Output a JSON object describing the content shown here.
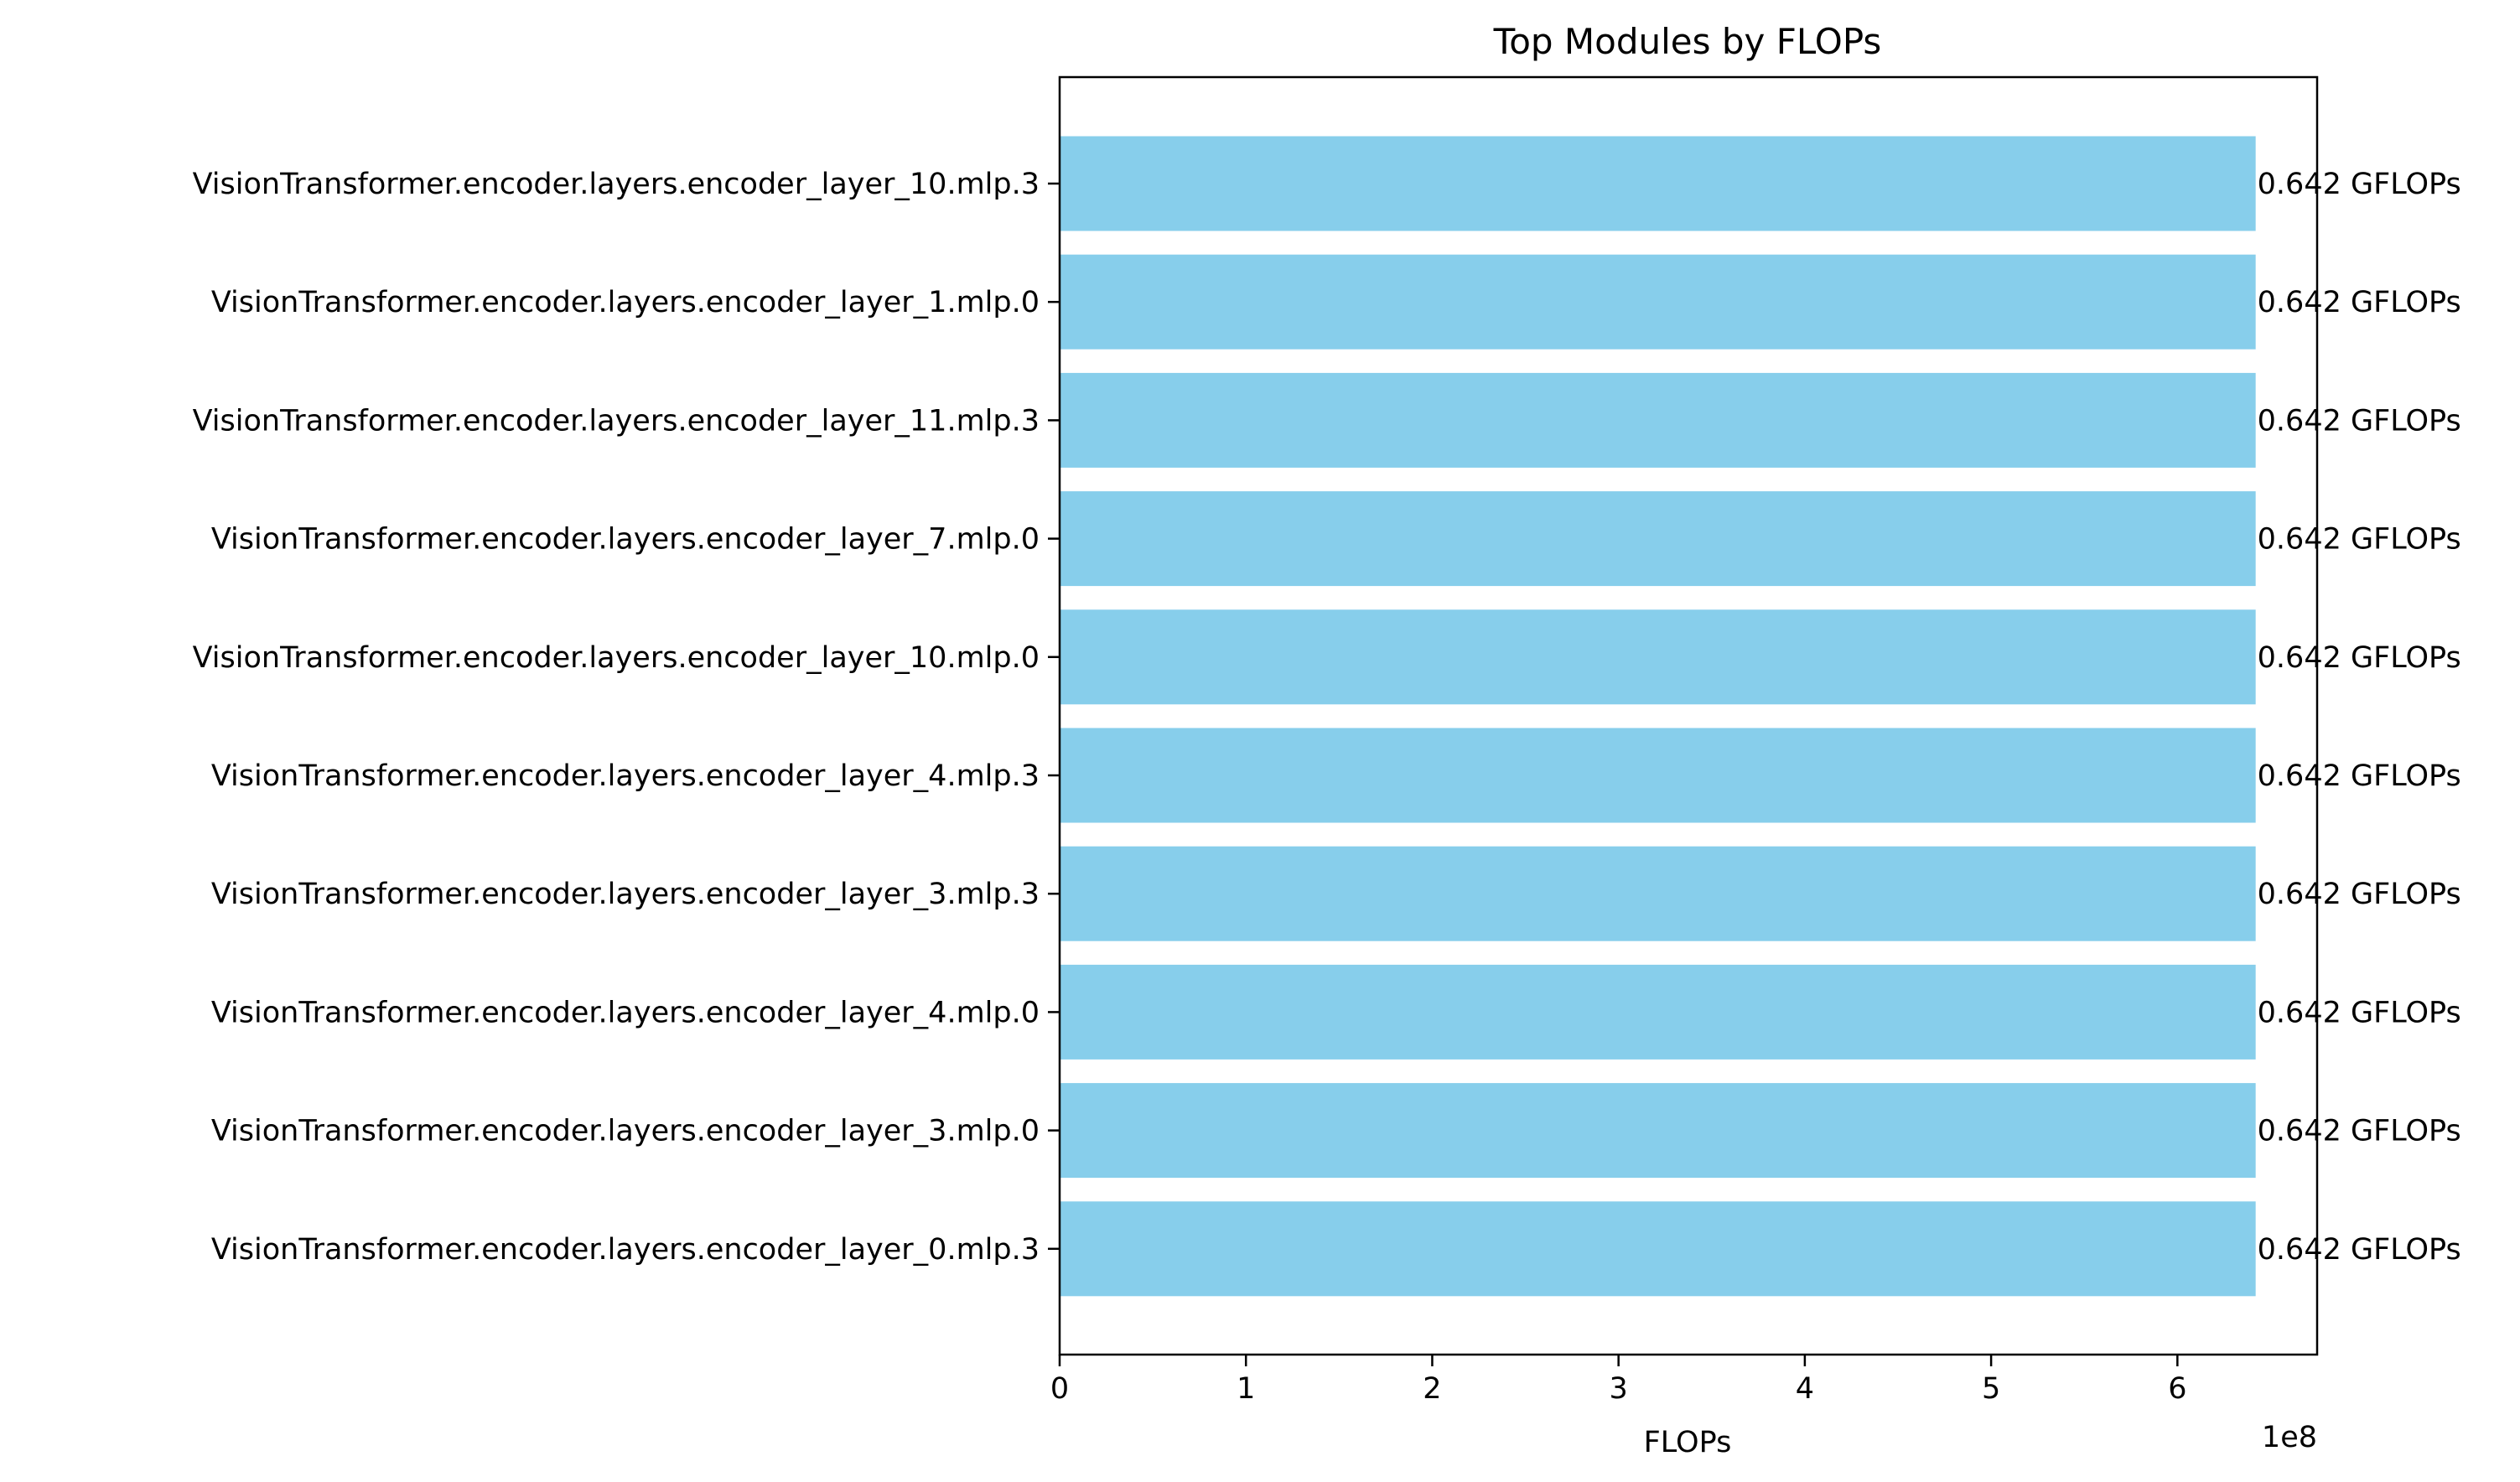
{
  "chart_data": {
    "type": "bar",
    "orientation": "horizontal",
    "title": "Top Modules by FLOPs",
    "xlabel": "FLOPs",
    "ylabel": "",
    "x_offset_label": "1e8",
    "xlim": [
      0,
      6.75
    ],
    "xticks": [
      0,
      1,
      2,
      3,
      4,
      5,
      6
    ],
    "xtick_labels": [
      "0",
      "1",
      "2",
      "3",
      "4",
      "5",
      "6"
    ],
    "grid": false,
    "bar_color": "#87CEEB",
    "categories": [
      "VisionTransformer.encoder.layers.encoder_layer_10.mlp.3",
      "VisionTransformer.encoder.layers.encoder_layer_1.mlp.0",
      "VisionTransformer.encoder.layers.encoder_layer_11.mlp.3",
      "VisionTransformer.encoder.layers.encoder_layer_7.mlp.0",
      "VisionTransformer.encoder.layers.encoder_layer_10.mlp.0",
      "VisionTransformer.encoder.layers.encoder_layer_4.mlp.3",
      "VisionTransformer.encoder.layers.encoder_layer_3.mlp.3",
      "VisionTransformer.encoder.layers.encoder_layer_4.mlp.0",
      "VisionTransformer.encoder.layers.encoder_layer_3.mlp.0",
      "VisionTransformer.encoder.layers.encoder_layer_0.mlp.3"
    ],
    "values": [
      6.42,
      6.42,
      6.42,
      6.42,
      6.42,
      6.42,
      6.42,
      6.42,
      6.42,
      6.42
    ],
    "value_labels": [
      "0.642 GFLOPs",
      "0.642 GFLOPs",
      "0.642 GFLOPs",
      "0.642 GFLOPs",
      "0.642 GFLOPs",
      "0.642 GFLOPs",
      "0.642 GFLOPs",
      "0.642 GFLOPs",
      "0.642 GFLOPs",
      "0.642 GFLOPs"
    ]
  }
}
